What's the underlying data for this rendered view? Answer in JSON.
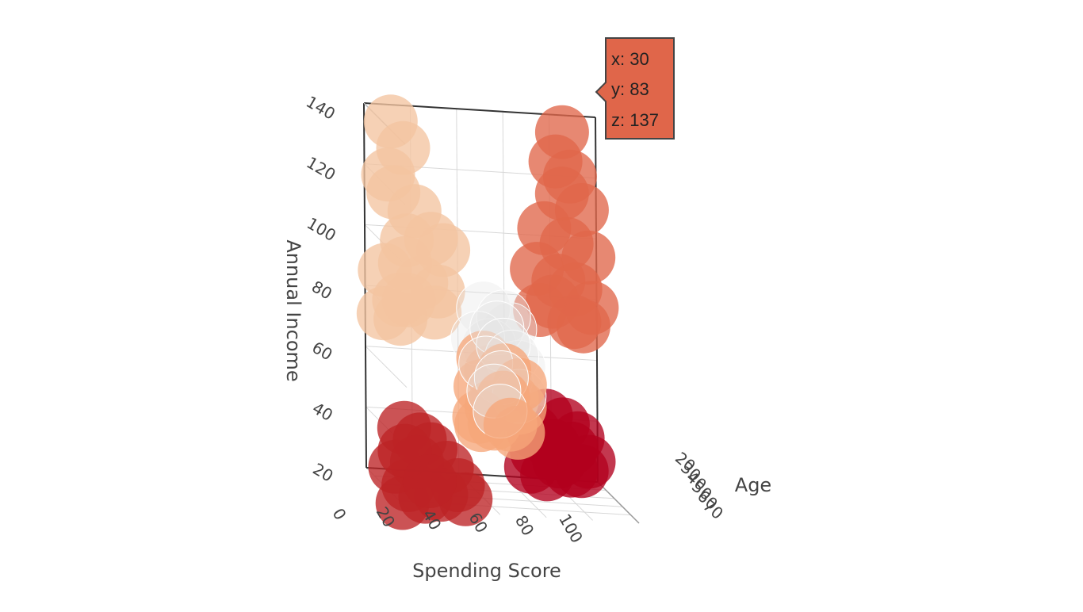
{
  "chart_data": {
    "type": "scatter",
    "dimensions": "3d",
    "axes": {
      "x": {
        "title": "Spending Score",
        "ticks": [
          "0",
          "20",
          "40",
          "60",
          "80",
          "100"
        ],
        "range": [
          0,
          100
        ]
      },
      "y": {
        "title": "Age",
        "ticks": [
          "20",
          "30",
          "40",
          "50",
          "60",
          "70"
        ],
        "range": [
          18,
          70
        ]
      },
      "z": {
        "title": "Annual Income",
        "ticks": [
          "20",
          "40",
          "60",
          "80",
          "100",
          "120",
          "140"
        ],
        "range": [
          15,
          140
        ]
      }
    },
    "grid": true,
    "legend": "none",
    "tooltip": {
      "x": "x: 30",
      "y": "y: 83",
      "z": "z: 137"
    },
    "clusters": [
      {
        "color": "#f4c4a0",
        "marker": "filled",
        "points": [
          [
            8,
            30,
            137
          ],
          [
            14,
            28,
            128
          ],
          [
            6,
            32,
            120
          ],
          [
            10,
            27,
            113
          ],
          [
            18,
            30,
            108
          ],
          [
            24,
            33,
            100
          ],
          [
            15,
            29,
            98
          ],
          [
            30,
            31,
            96
          ],
          [
            12,
            35,
            92
          ],
          [
            5,
            30,
            88
          ],
          [
            20,
            32,
            85
          ],
          [
            28,
            30,
            82
          ],
          [
            9,
            36,
            80
          ],
          [
            16,
            28,
            78
          ],
          [
            25,
            34,
            76
          ],
          [
            4,
            31,
            74
          ],
          [
            12,
            29,
            72
          ]
        ]
      },
      {
        "color": "#e0664a",
        "marker": "filled",
        "points": [
          [
            82,
            30,
            137
          ],
          [
            78,
            33,
            128
          ],
          [
            86,
            28,
            122
          ],
          [
            80,
            35,
            118
          ],
          [
            90,
            31,
            112
          ],
          [
            74,
            30,
            105
          ],
          [
            84,
            29,
            100
          ],
          [
            92,
            33,
            97
          ],
          [
            70,
            32,
            92
          ],
          [
            80,
            30,
            88
          ],
          [
            88,
            28,
            85
          ],
          [
            76,
            34,
            82
          ],
          [
            94,
            31,
            80
          ],
          [
            72,
            30,
            78
          ],
          [
            85,
            35,
            76
          ],
          [
            90,
            32,
            74
          ]
        ]
      },
      {
        "color": "#bd2225",
        "marker": "filled",
        "points": [
          [
            8,
            44,
            40
          ],
          [
            14,
            46,
            37
          ],
          [
            6,
            50,
            34
          ],
          [
            20,
            42,
            33
          ],
          [
            12,
            48,
            30
          ],
          [
            26,
            45,
            28
          ],
          [
            4,
            44,
            27
          ],
          [
            16,
            52,
            25
          ],
          [
            30,
            47,
            23
          ],
          [
            10,
            43,
            21
          ],
          [
            22,
            49,
            20
          ],
          [
            34,
            45,
            18
          ],
          [
            18,
            41,
            17
          ],
          [
            6,
            47,
            16
          ]
        ]
      },
      {
        "color": "#b2001e",
        "marker": "filled",
        "points": [
          [
            76,
            25,
            42
          ],
          [
            84,
            23,
            39
          ],
          [
            70,
            27,
            37
          ],
          [
            90,
            24,
            35
          ],
          [
            78,
            28,
            33
          ],
          [
            88,
            22,
            31
          ],
          [
            72,
            25,
            30
          ],
          [
            94,
            26,
            28
          ],
          [
            82,
            24,
            27
          ],
          [
            68,
            29,
            26
          ],
          [
            86,
            27,
            25
          ],
          [
            92,
            23,
            24
          ],
          [
            76,
            26,
            23
          ]
        ]
      },
      {
        "color": "#f6a77a",
        "marker": "filled",
        "points": [
          [
            42,
            45,
            65
          ],
          [
            50,
            48,
            62
          ],
          [
            46,
            43,
            60
          ],
          [
            56,
            50,
            58
          ],
          [
            40,
            47,
            56
          ],
          [
            48,
            52,
            54
          ],
          [
            54,
            46,
            52
          ],
          [
            44,
            49,
            50
          ],
          [
            58,
            44,
            49
          ],
          [
            38,
            51,
            47
          ],
          [
            50,
            55,
            46
          ],
          [
            46,
            47,
            44
          ],
          [
            54,
            53,
            43
          ],
          [
            42,
            42,
            42
          ]
        ]
      },
      {
        "color": "#e6e6e6",
        "marker": "open",
        "points": [
          [
            44,
            40,
            80
          ],
          [
            52,
            42,
            78
          ],
          [
            48,
            45,
            75
          ],
          [
            56,
            38,
            73
          ],
          [
            40,
            44,
            71
          ],
          [
            50,
            47,
            70
          ],
          [
            46,
            41,
            68
          ],
          [
            54,
            46,
            66
          ],
          [
            42,
            48,
            64
          ],
          [
            58,
            43,
            62
          ],
          [
            48,
            50,
            60
          ],
          [
            52,
            44,
            58
          ],
          [
            44,
            52,
            56
          ],
          [
            56,
            49,
            54
          ],
          [
            50,
            40,
            52
          ],
          [
            46,
            54,
            50
          ]
        ]
      }
    ]
  }
}
